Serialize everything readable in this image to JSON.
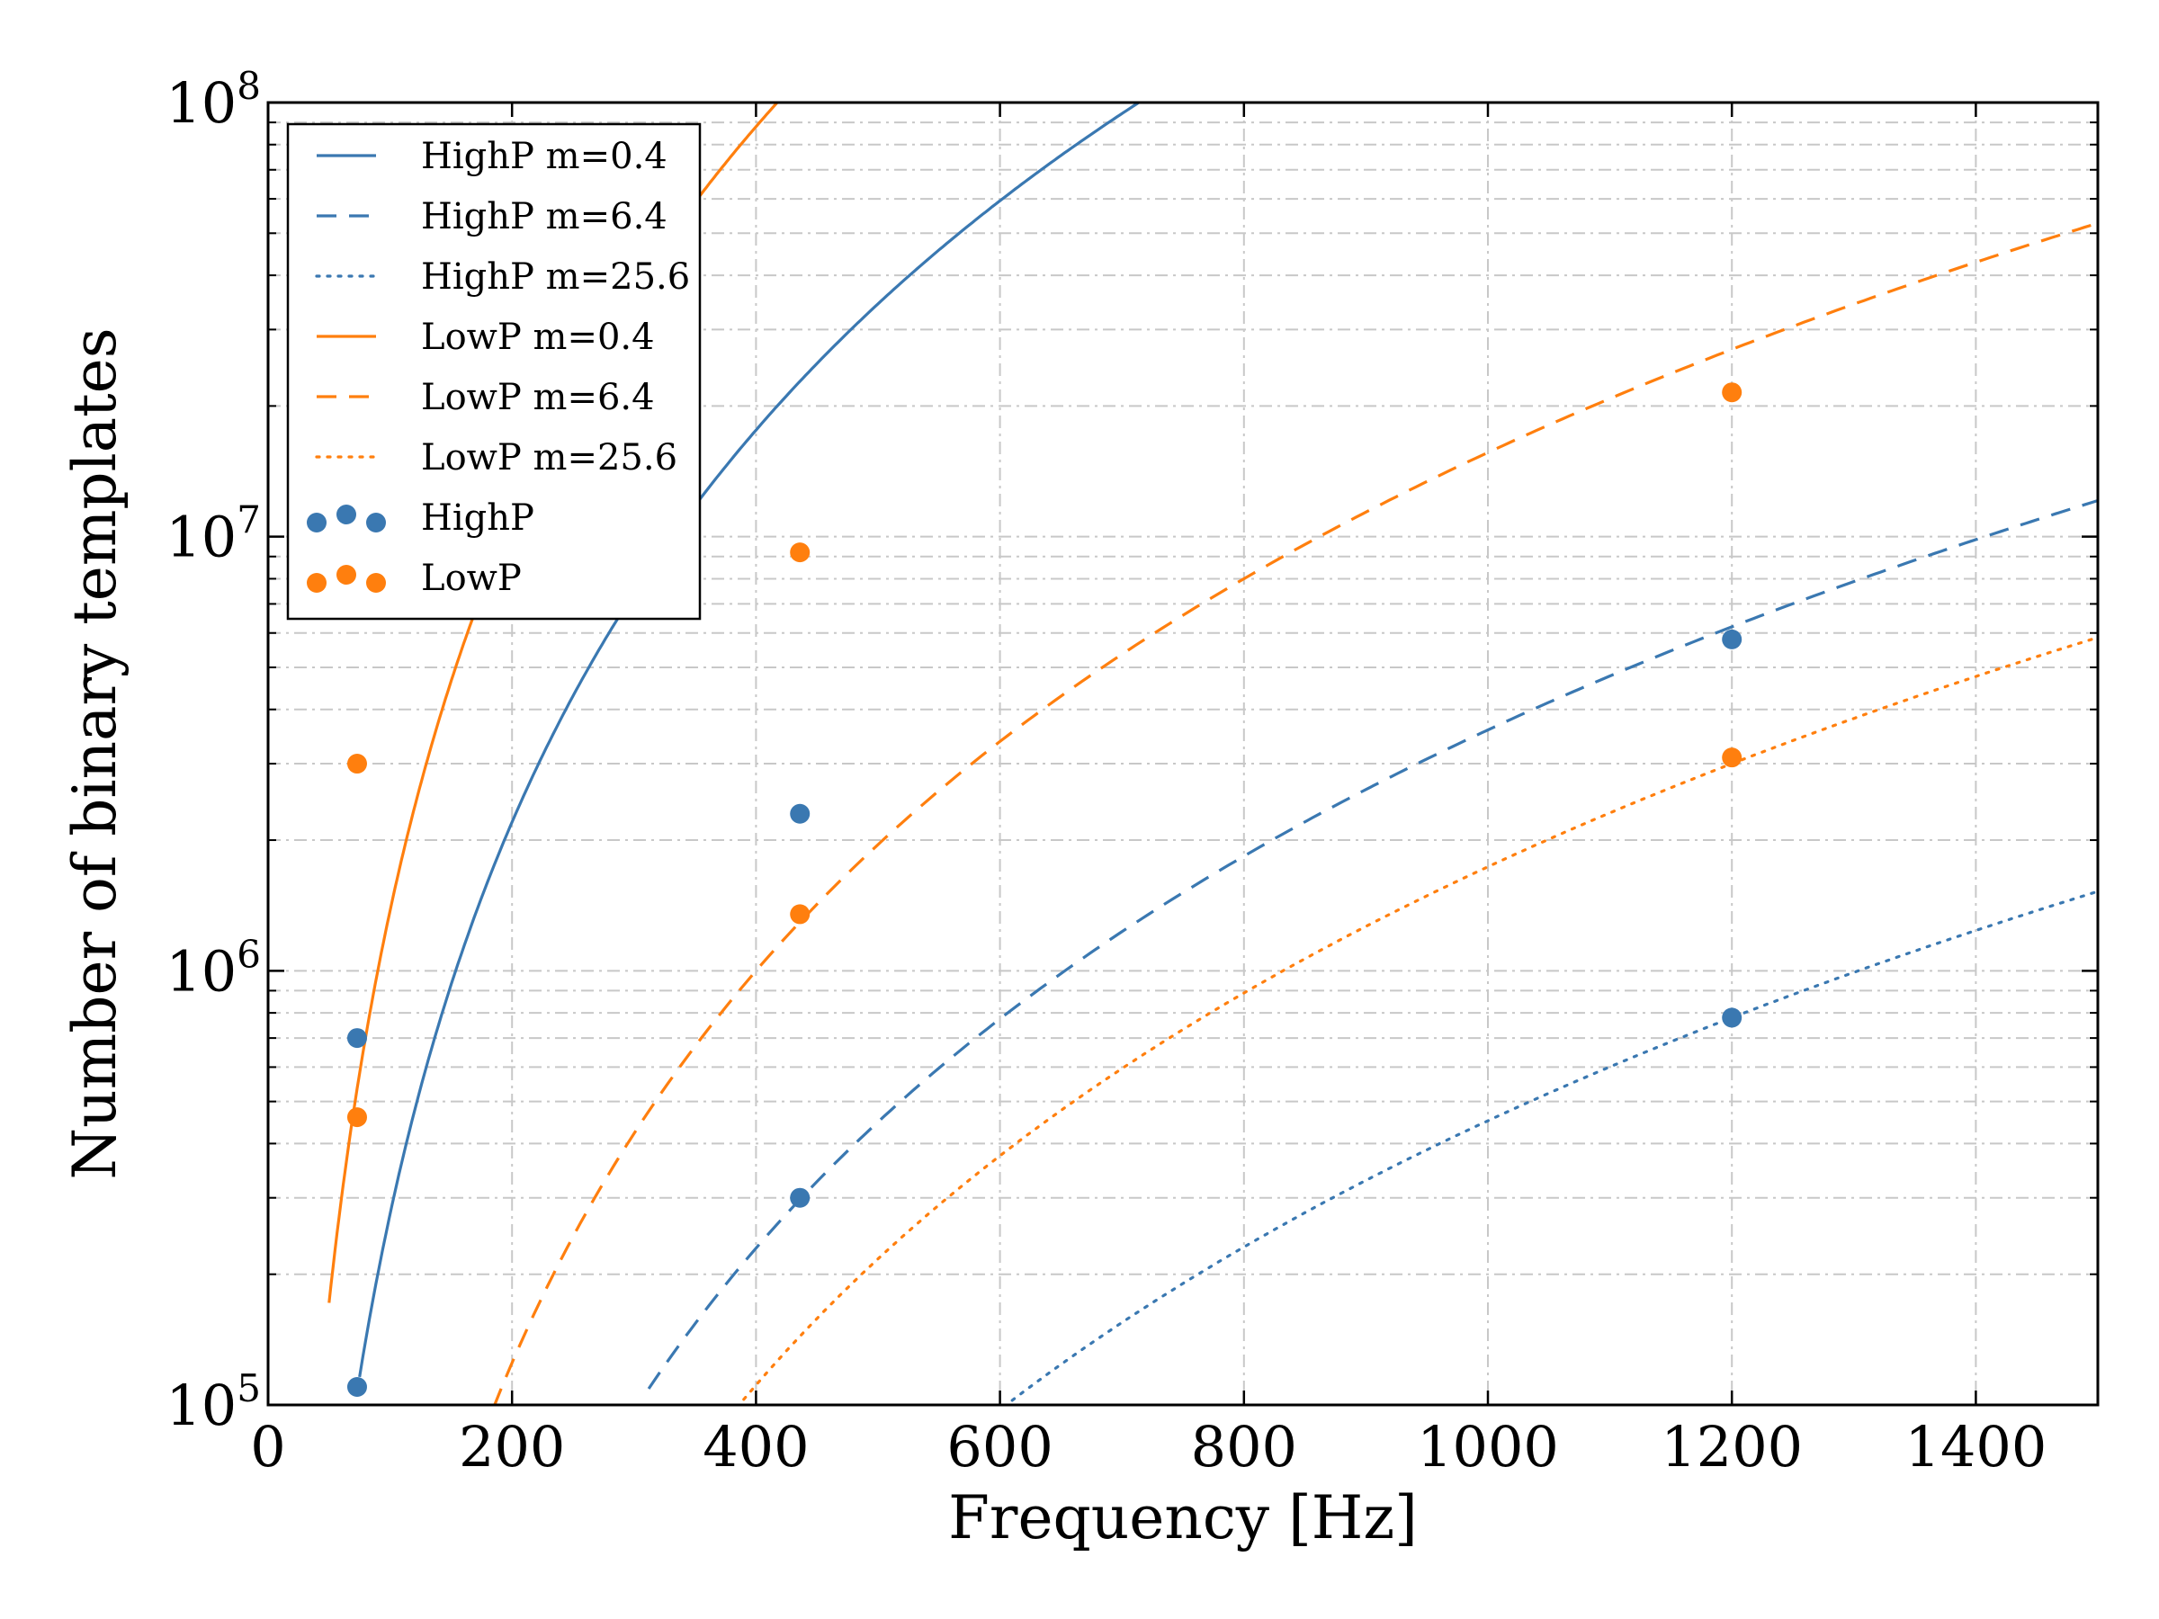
{
  "chart_data": {
    "type": "line",
    "title": "",
    "xlabel": "Frequency [Hz]",
    "ylabel": "Number of binary templates",
    "xscale": "linear",
    "yscale": "log",
    "xlim": [
      0,
      1500
    ],
    "ylim": [
      100000,
      100000000
    ],
    "grid": true,
    "legend_position": "top-left",
    "x_ticks": [
      {
        "value": 0,
        "label": "0"
      },
      {
        "value": 200,
        "label": "200"
      },
      {
        "value": 400,
        "label": "400"
      },
      {
        "value": 600,
        "label": "600"
      },
      {
        "value": 800,
        "label": "800"
      },
      {
        "value": 1000,
        "label": "1000"
      },
      {
        "value": 1200,
        "label": "1200"
      },
      {
        "value": 1400,
        "label": "1400"
      }
    ],
    "y_ticks": [
      {
        "value": 100000,
        "base": "10",
        "exp": "5"
      },
      {
        "value": 1000000,
        "base": "10",
        "exp": "6"
      },
      {
        "value": 10000000,
        "base": "10",
        "exp": "7"
      },
      {
        "value": 100000000,
        "base": "10",
        "exp": "8"
      }
    ],
    "series": [
      {
        "name": "HighP m=0.4",
        "color": "#3a78b1",
        "style": "solid",
        "x_start": 75,
        "x_end": 720,
        "ref_x": 200,
        "ref_y": 2200000,
        "exponent": 3.0
      },
      {
        "name": "HighP m=6.4",
        "color": "#3a78b1",
        "style": "dashed",
        "x_start": 312,
        "x_end": 1500,
        "ref_x": 1200,
        "ref_y": 6200000,
        "exponent": 3.0
      },
      {
        "name": "HighP m=25.6",
        "color": "#3a78b1",
        "style": "dotted",
        "x_start": 610,
        "x_end": 1500,
        "ref_x": 1200,
        "ref_y": 780000,
        "exponent": 3.0
      },
      {
        "name": "LowP m=0.4",
        "color": "#ff7f0e",
        "style": "solid",
        "x_start": 50,
        "x_end": 445,
        "ref_x": 200,
        "ref_y": 11000000,
        "exponent": 3.0
      },
      {
        "name": "LowP m=6.4",
        "color": "#ff7f0e",
        "style": "dashed",
        "x_start": 185,
        "x_end": 1500,
        "ref_x": 1200,
        "ref_y": 27000000,
        "exponent": 3.0
      },
      {
        "name": "LowP m=25.6",
        "color": "#ff7f0e",
        "style": "dotted",
        "x_start": 390,
        "x_end": 1500,
        "ref_x": 1200,
        "ref_y": 3000000,
        "exponent": 3.0
      }
    ],
    "scatter": [
      {
        "name": "HighP",
        "color": "#3a78b1",
        "x": [
          73,
          73,
          436,
          436,
          1200,
          1200
        ],
        "y": [
          110000,
          700000,
          300000,
          2300000,
          780000,
          5800000
        ]
      },
      {
        "name": "LowP",
        "color": "#ff7f0e",
        "x": [
          73,
          73,
          436,
          436,
          1200,
          1200
        ],
        "y": [
          460000,
          3000000,
          1350000,
          9200000,
          3100000,
          21500000
        ]
      }
    ]
  }
}
